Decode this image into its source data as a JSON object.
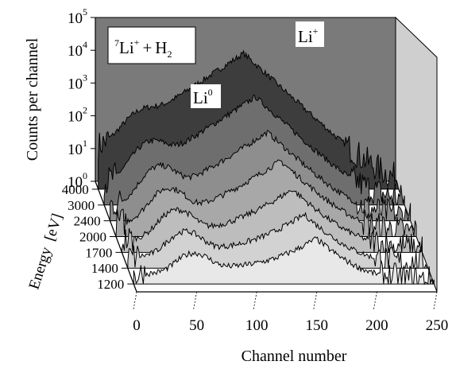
{
  "chart_data": {
    "type": "area",
    "title": "",
    "annotation_box": {
      "mass": "7",
      "ion": "Li",
      "ion_charge": "+",
      "plus": "+",
      "gas": "H",
      "gas_sub": "2"
    },
    "peak_labels": [
      {
        "base": "Li",
        "sup": "0",
        "channel": 38
      },
      {
        "base": "Li",
        "sup": "+",
        "channel": 120
      }
    ],
    "xlabel": "Channel number",
    "ylabel": "Counts per channel",
    "zlabel": "Energy  [eV]",
    "x_ticks": [
      "0",
      "50",
      "100",
      "150",
      "200",
      "250"
    ],
    "xlim": [
      0,
      250
    ],
    "y_ticks": [
      {
        "base": "10",
        "exp": "0"
      },
      {
        "base": "10",
        "exp": "1"
      },
      {
        "base": "10",
        "exp": "2"
      },
      {
        "base": "10",
        "exp": "3"
      },
      {
        "base": "10",
        "exp": "4"
      },
      {
        "base": "10",
        "exp": "5"
      }
    ],
    "y_scale": "log",
    "ylim": [
      1,
      100000
    ],
    "z_ticks": [
      "4000",
      "3000",
      "2400",
      "2000",
      "1700",
      "1400",
      "1200"
    ],
    "series": [
      {
        "energy": 4000,
        "li0_peak": 150,
        "li0_channel": 38,
        "liplus_peak": 14000,
        "liplus_channel": 121,
        "valley": 12,
        "color": "#3d3d3d"
      },
      {
        "energy": 3000,
        "li0_peak": 70,
        "li0_channel": 40,
        "liplus_peak": 2000,
        "liplus_channel": 126,
        "valley": 9,
        "color": "#6e6e6e"
      },
      {
        "energy": 2400,
        "li0_peak": 40,
        "li0_channel": 42,
        "liplus_peak": 500,
        "liplus_channel": 131,
        "valley": 7,
        "color": "#8e8e8e"
      },
      {
        "energy": 2000,
        "li0_peak": 25,
        "li0_channel": 44,
        "liplus_peak": 200,
        "liplus_channel": 137,
        "valley": 6,
        "color": "#a8a8a8"
      },
      {
        "energy": 1700,
        "li0_peak": 16,
        "li0_channel": 46,
        "liplus_peak": 80,
        "liplus_channel": 142,
        "valley": 5,
        "color": "#bdbdbd"
      },
      {
        "energy": 1400,
        "li0_peak": 10,
        "li0_channel": 48,
        "liplus_peak": 40,
        "liplus_channel": 147,
        "valley": 4,
        "color": "#d2d2d2"
      },
      {
        "energy": 1200,
        "li0_peak": 6,
        "li0_channel": 50,
        "liplus_peak": 22,
        "liplus_channel": 152,
        "valley": 3,
        "color": "#e8e8e8"
      }
    ],
    "back_wall_color": "#7a7a7a",
    "side_wall_color": "#cfcfcf",
    "floor_color": "#ffffff"
  }
}
